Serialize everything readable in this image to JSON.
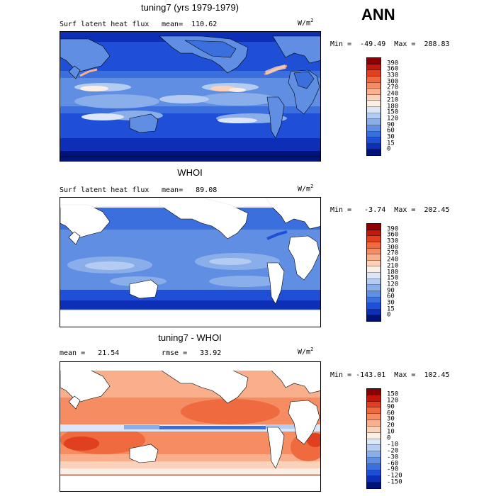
{
  "season": "ANN",
  "panels": [
    {
      "id": "model",
      "title": "tuning7 (yrs 1979-1979)",
      "subtitle_left": "Surf latent heat flux",
      "subtitle_stat": "mean=  110.62",
      "units_base": "W/m",
      "units_exp": "2",
      "minmax": "Min =  -49.49  Max =  288.83",
      "colorbar": {
        "levels": [
          "390",
          "360",
          "330",
          "300",
          "270",
          "240",
          "210",
          "180",
          "150",
          "120",
          "90",
          "60",
          "30",
          "15",
          "0"
        ],
        "colors": [
          "#8b0000",
          "#c0190c",
          "#e0401f",
          "#ef6a3f",
          "#f58c62",
          "#f9ae8c",
          "#fbd2b9",
          "#fbeee4",
          "#dbe7f8",
          "#b4cbf2",
          "#8aaeea",
          "#5f8ee3",
          "#3c6fde",
          "#1f4fd6",
          "#0d2fb8",
          "#00137a"
        ]
      }
    },
    {
      "id": "obs",
      "title": "WHOI",
      "subtitle_left": "Surf latent heat flux",
      "subtitle_stat": "mean=   89.08",
      "units_base": "W/m",
      "units_exp": "2",
      "minmax": "Min =   -3.74  Max =  202.45",
      "colorbar": {
        "levels": [
          "390",
          "360",
          "330",
          "300",
          "270",
          "240",
          "210",
          "180",
          "150",
          "120",
          "90",
          "60",
          "30",
          "15",
          "0"
        ],
        "colors": [
          "#8b0000",
          "#c0190c",
          "#e0401f",
          "#ef6a3f",
          "#f58c62",
          "#f9ae8c",
          "#fbd2b9",
          "#fbeee4",
          "#dbe7f8",
          "#b4cbf2",
          "#8aaeea",
          "#5f8ee3",
          "#3c6fde",
          "#1f4fd6",
          "#0d2fb8",
          "#00137a"
        ]
      }
    },
    {
      "id": "diff",
      "title": "tuning7 - WHOI",
      "subtitle_left": "mean =   21.54",
      "subtitle_stat": "rmse =   33.92",
      "units_base": "W/m",
      "units_exp": "2",
      "minmax": "Min = -143.01  Max =  102.45",
      "colorbar": {
        "levels": [
          "150",
          "120",
          "90",
          "60",
          "30",
          "20",
          "10",
          "0",
          "-10",
          "-20",
          "-30",
          "-60",
          "-90",
          "-120",
          "-150"
        ],
        "colors": [
          "#8b0000",
          "#c0190c",
          "#e0401f",
          "#ef6a3f",
          "#f58c62",
          "#f9ae8c",
          "#fbd2b9",
          "#fbeee4",
          "#dbe7f8",
          "#b4cbf2",
          "#8aaeea",
          "#5f8ee3",
          "#3c6fde",
          "#1f4fd6",
          "#0d2fb8",
          "#00137a"
        ]
      }
    }
  ]
}
